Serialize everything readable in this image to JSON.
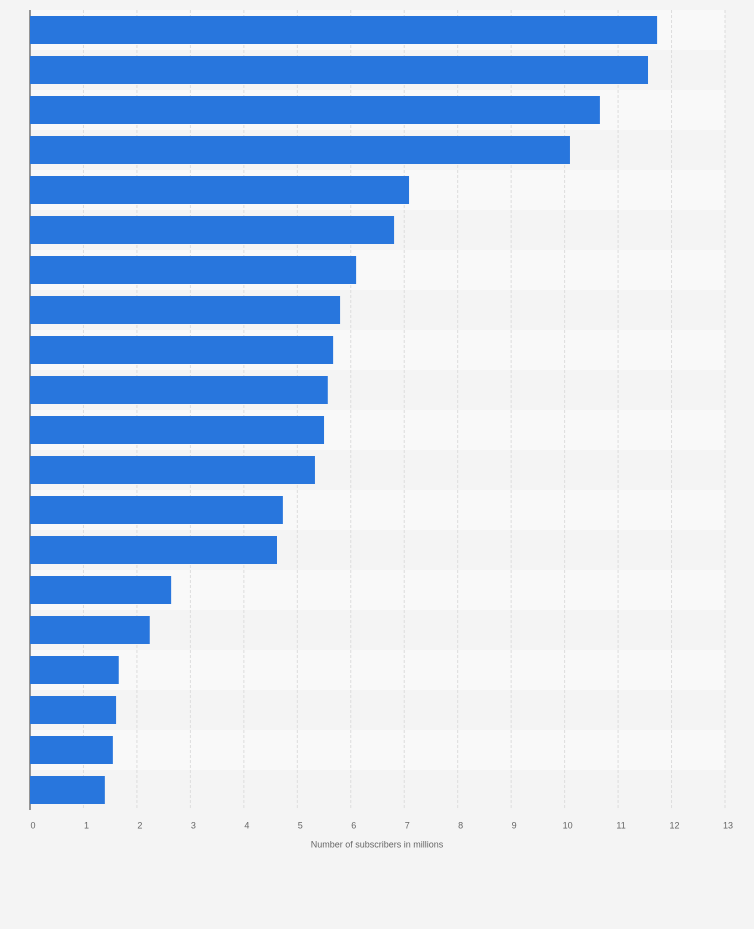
{
  "chart_data": {
    "type": "bar",
    "orientation": "horizontal",
    "x_label": "Number of subscribers in millions",
    "categories": [
      null,
      null,
      null,
      null,
      null,
      null,
      null,
      null,
      null,
      null,
      null,
      null,
      null,
      null,
      null,
      null,
      null,
      null,
      null,
      null
    ],
    "values": [
      11.73,
      11.56,
      10.66,
      10.1,
      7.09,
      6.81,
      6.1,
      5.8,
      5.67,
      5.57,
      5.5,
      5.33,
      4.73,
      4.62,
      2.64,
      2.24,
      1.66,
      1.61,
      1.55,
      1.4
    ],
    "color": "#2876dd",
    "xlim": [
      0,
      13
    ],
    "xticks": [
      0,
      1,
      2,
      3,
      4,
      5,
      6,
      7,
      8,
      9,
      10,
      11,
      12,
      13
    ],
    "grid": true
  }
}
